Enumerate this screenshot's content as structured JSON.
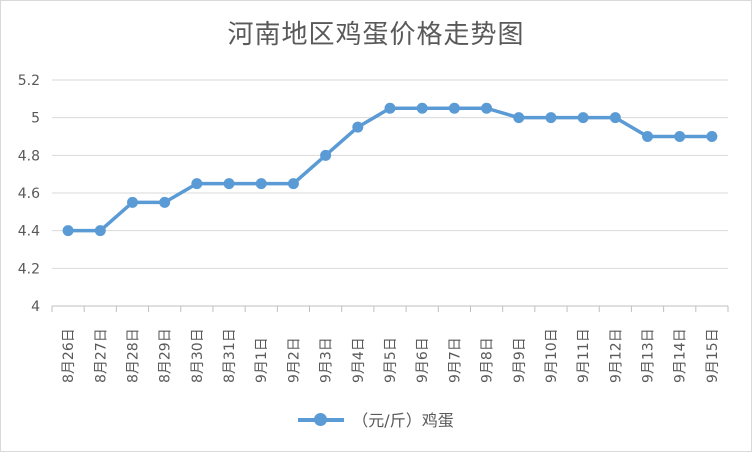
{
  "chart_data": {
    "type": "line",
    "title": "河南地区鸡蛋价格走势图",
    "xlabel": "",
    "ylabel": "",
    "categories": [
      "8月26日",
      "8月27日",
      "8月28日",
      "8月29日",
      "8月30日",
      "8月31日",
      "9月1日",
      "9月2日",
      "9月3日",
      "9月4日",
      "9月5日",
      "9月6日",
      "9月7日",
      "9月8日",
      "9月9日",
      "9月10日",
      "9月11日",
      "9月12日",
      "9月13日",
      "9月14日",
      "9月15日"
    ],
    "series": [
      {
        "name": "（元/斤）鸡蛋",
        "values": [
          4.4,
          4.4,
          4.55,
          4.55,
          4.65,
          4.65,
          4.65,
          4.65,
          4.8,
          4.95,
          5.05,
          5.05,
          5.05,
          5.05,
          5.0,
          5.0,
          5.0,
          5.0,
          4.9,
          4.9,
          4.9
        ],
        "color": "#5B9BD5"
      }
    ],
    "ylim": [
      4,
      5.2
    ],
    "yticks": [
      "4",
      "4.2",
      "4.4",
      "4.6",
      "4.8",
      "5",
      "5.2"
    ],
    "grid": true,
    "legend_position": "bottom"
  }
}
